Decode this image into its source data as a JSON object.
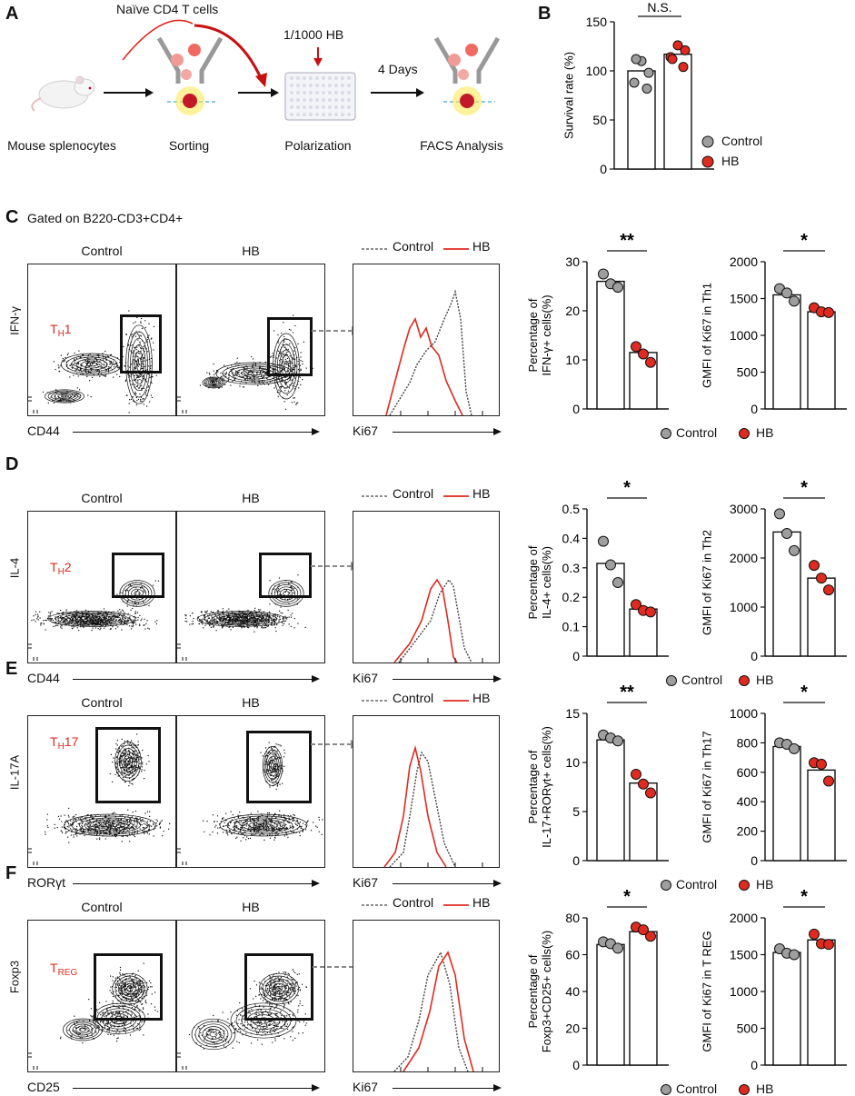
{
  "colors": {
    "control": "#9e9e9e",
    "hb": "#e02a1f",
    "red_text": "#e02a1f",
    "gray_arrow": "#8a8a8a"
  },
  "panelA": {
    "label": "A",
    "naive_label": "Naïve CD4 T cells",
    "hb_label": "1/1000 HB",
    "days_label": "4 Days",
    "step_labels": [
      "Mouse splenocytes",
      "Sorting",
      "Polarization",
      "FACS Analysis"
    ]
  },
  "panelB": {
    "label": "B",
    "sig": "N.S.",
    "legend": [
      "Control",
      "HB"
    ]
  },
  "panelC_header": "Gated on B220-CD3+CD4+",
  "rows": [
    {
      "label": "C",
      "y_axis": "IFN-γ",
      "x_axis": "CD44",
      "subset_main": "T",
      "subset_sub": "H",
      "subset_suffix": "1",
      "col_control": "Control",
      "col_hb": "HB",
      "hist_x": "Ki67",
      "hist_legend": [
        "Control",
        "HB"
      ],
      "legend": [
        "Control",
        "HB"
      ]
    },
    {
      "label": "D",
      "y_axis": "IL-4",
      "x_axis": "CD44",
      "subset_main": "T",
      "subset_sub": "H",
      "subset_suffix": "2",
      "col_control": "Control",
      "col_hb": "HB",
      "hist_x": "Ki67",
      "hist_legend": [
        "Control",
        "HB"
      ],
      "legend": [
        "Control",
        "HB"
      ]
    },
    {
      "label": "E",
      "y_axis": "IL-17A",
      "x_axis": "RORγt",
      "subset_main": "T",
      "subset_sub": "H",
      "subset_suffix": "17",
      "col_control": "Control",
      "col_hb": "HB",
      "hist_x": "Ki67",
      "hist_legend": [
        "Control",
        "HB"
      ],
      "legend": [
        "Control",
        "HB"
      ]
    },
    {
      "label": "F",
      "y_axis": "Foxp3",
      "x_axis": "CD25",
      "subset_main": "T",
      "subset_sub": "REG",
      "subset_suffix": "",
      "col_control": "Control",
      "col_hb": "HB",
      "hist_x": "Ki67",
      "hist_legend": [
        "Control",
        "HB"
      ],
      "legend": [
        "Control",
        "HB"
      ]
    }
  ],
  "chart_data": [
    {
      "id": "B",
      "type": "bar",
      "categories": [
        "Control",
        "HB"
      ],
      "values": [
        100,
        117
      ],
      "points": [
        [
          88,
          98,
          110,
          112,
          82
        ],
        [
          114,
          121,
          126,
          112,
          104
        ]
      ],
      "ylabel": "Survival rate (%)",
      "ylim": [
        0,
        150
      ],
      "ticks": [
        0,
        50,
        100,
        150
      ],
      "sig": "N.S."
    },
    {
      "id": "C1",
      "type": "bar",
      "categories": [
        "Control",
        "HB"
      ],
      "values": [
        26,
        11.5
      ],
      "points": [
        [
          27.5,
          25.5,
          24.8
        ],
        [
          12.7,
          11.2,
          9.5
        ]
      ],
      "ylabel": "Percentage of IFN-γ+ cells(%)",
      "ylim": [
        0,
        30
      ],
      "ticks": [
        0,
        10,
        20,
        30
      ],
      "sig": "**"
    },
    {
      "id": "C2",
      "type": "bar",
      "categories": [
        "Control",
        "HB"
      ],
      "values": [
        1550,
        1320
      ],
      "points": [
        [
          1635,
          1575,
          1465
        ],
        [
          1375,
          1320,
          1310
        ]
      ],
      "ylabel": "GMFI  of Ki67 in Th1",
      "ylim": [
        0,
        2000
      ],
      "ticks": [
        0,
        500,
        1000,
        1500,
        2000
      ],
      "sig": "*"
    },
    {
      "id": "D1",
      "type": "bar",
      "categories": [
        "Control",
        "HB"
      ],
      "values": [
        0.315,
        0.16
      ],
      "points": [
        [
          0.39,
          0.31,
          0.25
        ],
        [
          0.175,
          0.155,
          0.15
        ]
      ],
      "ylabel": "Percentage of IL-4+ cells(%)",
      "ylim": [
        0,
        0.5
      ],
      "ticks": [
        0,
        0.1,
        0.2,
        0.3,
        0.4,
        0.5
      ],
      "sig": "*"
    },
    {
      "id": "D2",
      "type": "bar",
      "categories": [
        "Control",
        "HB"
      ],
      "values": [
        2530,
        1590
      ],
      "points": [
        [
          2900,
          2500,
          2150
        ],
        [
          1850,
          1590,
          1350
        ]
      ],
      "ylabel": "GMFI  of Ki67 in Th2",
      "ylim": [
        0,
        3000
      ],
      "ticks": [
        0,
        1000,
        2000,
        3000
      ],
      "sig": "*"
    },
    {
      "id": "E1",
      "type": "bar",
      "categories": [
        "Control",
        "HB"
      ],
      "values": [
        12.3,
        7.9
      ],
      "points": [
        [
          12.8,
          12.5,
          12.2
        ],
        [
          8.8,
          7.8,
          6.9
        ]
      ],
      "ylabel": "Percentage of IL-17+RORγt+ cells(%)",
      "ylim": [
        0,
        15
      ],
      "ticks": [
        0,
        5,
        10,
        15
      ],
      "sig": "**"
    },
    {
      "id": "E2",
      "type": "bar",
      "categories": [
        "Control",
        "HB"
      ],
      "values": [
        775,
        615
      ],
      "points": [
        [
          800,
          790,
          760
        ],
        [
          665,
          655,
          540
        ]
      ],
      "ylabel": "GMFI  of Ki67 in Th17",
      "ylim": [
        0,
        1000
      ],
      "ticks": [
        0,
        200,
        400,
        600,
        800,
        1000
      ],
      "sig": "*"
    },
    {
      "id": "F1",
      "type": "bar",
      "categories": [
        "Control",
        "HB"
      ],
      "values": [
        65.5,
        72.5
      ],
      "points": [
        [
          67,
          66,
          63.5
        ],
        [
          75,
          73.5,
          70
        ]
      ],
      "ylabel": "Percentage of Foxp3+CD25+ cells(%)",
      "ylim": [
        0,
        80
      ],
      "ticks": [
        0,
        20,
        40,
        60,
        80
      ],
      "sig": "*"
    },
    {
      "id": "F2",
      "type": "bar",
      "categories": [
        "Control",
        "HB"
      ],
      "values": [
        1530,
        1700
      ],
      "points": [
        [
          1580,
          1520,
          1500
        ],
        [
          1780,
          1650,
          1640
        ]
      ],
      "ylabel": "GMFI  of Ki67 in T REG",
      "ylim": [
        0,
        2000
      ],
      "ticks": [
        0,
        500,
        1000,
        1500,
        2000
      ],
      "sig": "*"
    }
  ]
}
